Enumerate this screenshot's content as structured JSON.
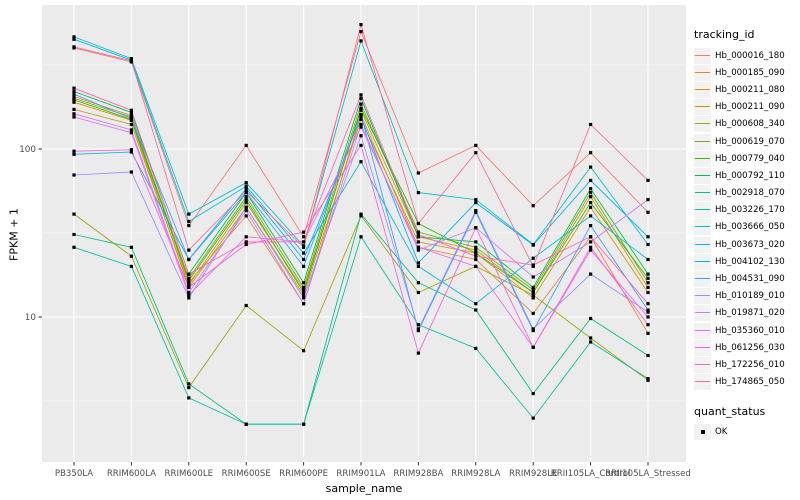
{
  "chart_data": {
    "type": "line",
    "title": "",
    "xlabel": "sample_name",
    "ylabel": "FPKM + 1",
    "y_scale": "log10",
    "ylim": [
      1.35,
      700
    ],
    "y_ticks": [
      {
        "value": 10,
        "label": "10"
      },
      {
        "value": 100,
        "label": "100"
      }
    ],
    "y_minor_ticks": [
      3.162,
      31.62,
      316.2
    ],
    "grid": true,
    "legend_position": "right",
    "x_categories": [
      "PB350LA",
      "RRIM600LA",
      "RRIM600LE",
      "RRIM600SE",
      "RRIM600PE",
      "RRIM901LA",
      "RRIM928BA",
      "RRIM928LA",
      "RRIM928LE",
      "RRII105LA_Control",
      "RRII105LA_Stressed"
    ],
    "series": [
      {
        "name": "Hb_000016_180",
        "color": "#F8766D",
        "values": [
          400,
          330,
          35,
          105,
          30,
          500,
          72,
          105,
          46,
          95,
          42
        ]
      },
      {
        "name": "Hb_000185_090",
        "color": "#EA8331",
        "values": [
          205,
          158,
          16,
          40,
          12,
          160,
          26,
          22,
          10.5,
          30,
          8
        ]
      },
      {
        "name": "Hb_000211_080",
        "color": "#D89000",
        "values": [
          190,
          148,
          15,
          45,
          13.5,
          150,
          28,
          24,
          13,
          45,
          14
        ]
      },
      {
        "name": "Hb_000211_090",
        "color": "#C09B00",
        "values": [
          172,
          140,
          15.5,
          48,
          14.5,
          170,
          30,
          25,
          14,
          52,
          15
        ]
      },
      {
        "name": "Hb_000608_340",
        "color": "#A3A500",
        "values": [
          41,
          23,
          3.8,
          11.7,
          6.3,
          40,
          14,
          20,
          13.5,
          7.5,
          4.2
        ]
      },
      {
        "name": "Hb_000619_070",
        "color": "#7CAE00",
        "values": [
          200,
          155,
          17,
          52,
          15,
          185,
          32,
          26,
          14.5,
          55,
          16
        ]
      },
      {
        "name": "Hb_000779_040",
        "color": "#39B600",
        "values": [
          196,
          150,
          16.5,
          50,
          14,
          175,
          36,
          24,
          14,
          48,
          17
        ]
      },
      {
        "name": "Hb_000792_110",
        "color": "#00BB4E",
        "values": [
          220,
          165,
          18,
          55,
          16,
          200,
          30,
          28,
          15,
          58,
          18
        ]
      },
      {
        "name": "Hb_002918_070",
        "color": "#00BF7D",
        "values": [
          31,
          26,
          4,
          2.3,
          2.3,
          41,
          16,
          11,
          3.5,
          9.8,
          5.9
        ]
      },
      {
        "name": "Hb_003226_170",
        "color": "#00C1A3",
        "values": [
          26,
          20,
          3.3,
          2.3,
          2.3,
          30,
          9,
          6.5,
          2.5,
          7.1,
          4.3
        ]
      },
      {
        "name": "Hb_003666_050",
        "color": "#00BFC4",
        "values": [
          465,
          345,
          41,
          63,
          26.5,
          440,
          55,
          50,
          27,
          78,
          27
        ]
      },
      {
        "name": "Hb_003673_020",
        "color": "#00BAE0",
        "values": [
          450,
          338,
          37,
          60,
          24,
          84,
          20,
          12,
          22.4,
          40,
          22
        ]
      },
      {
        "name": "Hb_004102_130",
        "color": "#00B0F6",
        "values": [
          93,
          96,
          22,
          58,
          22,
          155,
          21,
          48,
          26.8,
          65,
          30
        ]
      },
      {
        "name": "Hb_004531_090",
        "color": "#35A2FF",
        "values": [
          212,
          152,
          22,
          55,
          20,
          160,
          8.3,
          42,
          8.3,
          35,
          11
        ]
      },
      {
        "name": "Hb_010189_010",
        "color": "#9590FF",
        "values": [
          70,
          73,
          13,
          45,
          13,
          120,
          8.5,
          43,
          8.5,
          18,
          10.7
        ]
      },
      {
        "name": "Hb_019871_020",
        "color": "#C77CFF",
        "values": [
          162,
          130,
          14,
          43,
          12,
          140,
          25,
          34,
          17.3,
          28,
          50
        ]
      },
      {
        "name": "Hb_035360_010",
        "color": "#E76BF3",
        "values": [
          155,
          125,
          13.5,
          30,
          28,
          135,
          26,
          20,
          6.6,
          25,
          10
        ]
      },
      {
        "name": "Hb_061256_030",
        "color": "#FA62DB",
        "values": [
          97,
          99,
          15,
          27,
          32,
          105,
          6.1,
          34,
          6.6,
          26,
          9
        ]
      },
      {
        "name": "Hb_172256_010",
        "color": "#FF62BC",
        "values": [
          230,
          170,
          18,
          28,
          28,
          210,
          31,
          23,
          20.4,
          30,
          12
        ]
      },
      {
        "name": "Hb_174865_050",
        "color": "#FF6A98",
        "values": [
          405,
          335,
          25,
          56,
          26,
          550,
          36,
          95,
          20,
          140,
          65
        ]
      }
    ],
    "marker": {
      "shape": "square",
      "color": "#000000",
      "size": 3.2
    }
  },
  "legend": {
    "tracking_title": "tracking_id",
    "quant_title": "quant_status",
    "quant_items": [
      {
        "label": "OK"
      }
    ]
  },
  "colors": {
    "panel_bg": "#EBEBEB",
    "grid": "#FFFFFF",
    "tick_text": "#4D4D4D",
    "tick_mark": "#333333",
    "marker": "#000000",
    "legend_key_bg": "#F2F2F2"
  }
}
